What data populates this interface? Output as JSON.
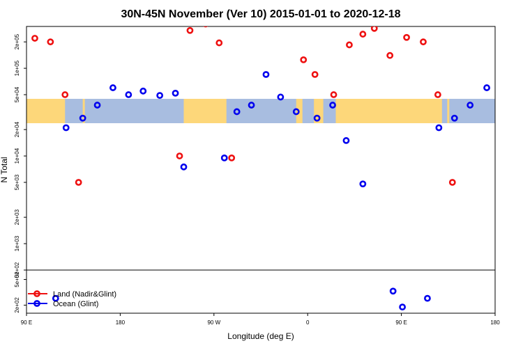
{
  "chart_data": {
    "type": "scatter",
    "title": "30N-45N November (Ver 10)   2015-01-01 to 2020-12-18",
    "xlabel": "Longitude (deg E)",
    "ylabel": "N Total",
    "x_ticks": [
      {
        "value": 90,
        "label": "90 E"
      },
      {
        "value": 180,
        "label": "180"
      },
      {
        "value": 270,
        "label": "90 W"
      },
      {
        "value": 360,
        "label": "0"
      },
      {
        "value": 450,
        "label": "90 E"
      },
      {
        "value": 540,
        "label": "180"
      }
    ],
    "xlim": [
      90,
      540
    ],
    "y_scale": "log",
    "ylim": [
      500,
      300000
    ],
    "y_ticks": [
      {
        "value": 500,
        "label": "5e+02"
      },
      {
        "value": 1000,
        "label": "1e+03"
      },
      {
        "value": 2000,
        "label": "2e+03"
      },
      {
        "value": 5000,
        "label": "5e+03"
      },
      {
        "value": 10000,
        "label": "1e+04"
      },
      {
        "value": 20000,
        "label": "2e+04"
      },
      {
        "value": 50000,
        "label": "5e+04"
      },
      {
        "value": 100000,
        "label": "1e+05"
      },
      {
        "value": 200000,
        "label": "2e+05"
      }
    ],
    "inset": {
      "ylim": [
        150,
        700
      ],
      "y_ticks": [
        {
          "value": 200,
          "label": "2e+02"
        },
        {
          "value": 500,
          "label": "5e+02"
        }
      ]
    },
    "map_band": {
      "ocean_color": "#a8bde0",
      "land_color": "#fdd77a"
    },
    "legend": {
      "position": "bottom-left"
    },
    "series": [
      {
        "name": "Land (Nadir&Glint)",
        "color": "#ee1111",
        "points": [
          {
            "x": 98,
            "y": 220000
          },
          {
            "x": 113,
            "y": 200000
          },
          {
            "x": 127,
            "y": 50000
          },
          {
            "x": 140,
            "y": 5000
          },
          {
            "x": 237,
            "y": 10000
          },
          {
            "x": 247,
            "y": 270000
          },
          {
            "x": 262,
            "y": 320000
          },
          {
            "x": 275,
            "y": 195000
          },
          {
            "x": 287,
            "y": 9500
          },
          {
            "x": 356,
            "y": 125000
          },
          {
            "x": 367,
            "y": 85000
          },
          {
            "x": 385,
            "y": 50000
          },
          {
            "x": 400,
            "y": 185000
          },
          {
            "x": 413,
            "y": 245000
          },
          {
            "x": 424,
            "y": 285000
          },
          {
            "x": 439,
            "y": 140000
          },
          {
            "x": 455,
            "y": 225000
          },
          {
            "x": 471,
            "y": 200000
          },
          {
            "x": 485,
            "y": 50000
          },
          {
            "x": 499,
            "y": 5000
          }
        ]
      },
      {
        "name": "Ocean (Glint)",
        "color": "#0000ee",
        "points": [
          {
            "x": 128,
            "y": 21000
          },
          {
            "x": 144,
            "y": 27000
          },
          {
            "x": 158,
            "y": 38000
          },
          {
            "x": 173,
            "y": 60000
          },
          {
            "x": 188,
            "y": 50000
          },
          {
            "x": 202,
            "y": 55000
          },
          {
            "x": 218,
            "y": 49000
          },
          {
            "x": 233,
            "y": 52000
          },
          {
            "x": 241,
            "y": 7500
          },
          {
            "x": 280,
            "y": 9500
          },
          {
            "x": 292,
            "y": 32000
          },
          {
            "x": 306,
            "y": 38000
          },
          {
            "x": 320,
            "y": 85000
          },
          {
            "x": 334,
            "y": 47000
          },
          {
            "x": 349,
            "y": 32000
          },
          {
            "x": 369,
            "y": 27000
          },
          {
            "x": 384,
            "y": 38000
          },
          {
            "x": 397,
            "y": 15000
          },
          {
            "x": 413,
            "y": 4800
          },
          {
            "x": 486,
            "y": 21000
          },
          {
            "x": 501,
            "y": 27000
          },
          {
            "x": 516,
            "y": 38000
          },
          {
            "x": 532,
            "y": 60000
          }
        ],
        "inset_points": [
          {
            "x": 118,
            "y": 255
          },
          {
            "x": 442,
            "y": 330
          },
          {
            "x": 451,
            "y": 187
          },
          {
            "x": 475,
            "y": 255
          }
        ]
      }
    ]
  }
}
